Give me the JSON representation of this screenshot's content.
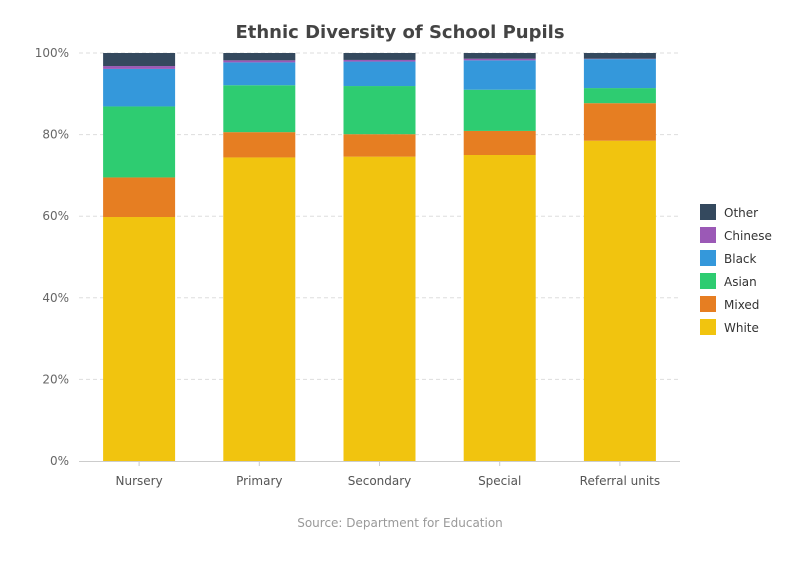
{
  "chart_data": {
    "type": "bar",
    "stacked": true,
    "title": "Ethnic Diversity of School Pupils",
    "source": "Source: Department for Education",
    "categories": [
      "Nursery",
      "Primary",
      "Secondary",
      "Special",
      "Referral units"
    ],
    "ylim": [
      0,
      100
    ],
    "yticks": [
      "0%",
      "20%",
      "40%",
      "60%",
      "80%",
      "100%"
    ],
    "grid": true,
    "legend_position": "right",
    "series": [
      {
        "name": "White",
        "color": "#f1c40f",
        "values": [
          59.8,
          74.4,
          74.6,
          75.0,
          78.5
        ]
      },
      {
        "name": "Mixed",
        "color": "#e67e22",
        "values": [
          9.7,
          6.2,
          5.5,
          5.9,
          9.2
        ]
      },
      {
        "name": "Asian",
        "color": "#2ecc71",
        "values": [
          17.4,
          11.5,
          11.8,
          10.1,
          3.7
        ]
      },
      {
        "name": "Black",
        "color": "#3498db",
        "values": [
          9.2,
          5.6,
          6.0,
          7.2,
          7.1
        ]
      },
      {
        "name": "Chinese",
        "color": "#9b59b6",
        "values": [
          0.7,
          0.5,
          0.4,
          0.4,
          0.1
        ]
      },
      {
        "name": "Other",
        "color": "#34495e",
        "values": [
          3.2,
          1.8,
          1.7,
          1.4,
          1.4
        ]
      }
    ]
  }
}
